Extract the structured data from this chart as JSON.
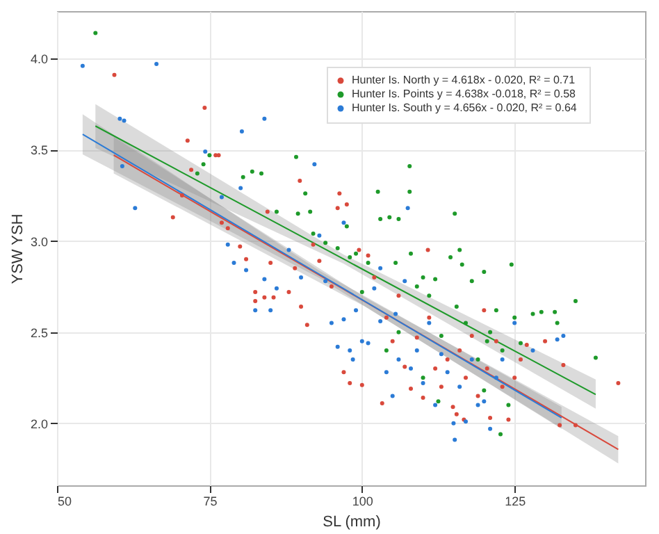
{
  "chart_data": {
    "type": "scatter",
    "xlabel": "SL (mm)",
    "ylabel": "YSW YSH",
    "xlim": [
      50,
      146.4
    ],
    "ylim": [
      1.66,
      4.26
    ],
    "xticks": [
      50,
      75,
      100,
      125
    ],
    "yticks": [
      {
        "value": 2,
        "label": "2.0"
      },
      2.5,
      {
        "value": 3,
        "label": "3.0"
      },
      3.5,
      {
        "value": 4,
        "label": "4.0"
      }
    ],
    "grid": true,
    "legend": "top right",
    "marker": "circle",
    "series": [
      {
        "name": "Hunter Is. North y = 4.618x - 0.020, R² = 0.71",
        "color": "#d9493c",
        "x": [
          59.4,
          71.4,
          74.2,
          70.5,
          69,
          72,
          76,
          76.5,
          78,
          77,
          80,
          81,
          82.5,
          82.5,
          84,
          85.5,
          85,
          88,
          89,
          90,
          91,
          92,
          93,
          95,
          96,
          97,
          98,
          100,
          99.5,
          101,
          102,
          103.3,
          104,
          105,
          106,
          107,
          108,
          109,
          110,
          110.8,
          111,
          112,
          113,
          114,
          114.9,
          115.5,
          116,
          116.7,
          117,
          118,
          119,
          120,
          120.5,
          121,
          122,
          123,
          124,
          125,
          126,
          127,
          130,
          132.4,
          133,
          135,
          142,
          89.8,
          96.3,
          97.5,
          84.5
        ],
        "values": [
          3.91,
          3.55,
          3.73,
          3.25,
          3.13,
          3.39,
          3.47,
          3.47,
          3.07,
          3.1,
          2.97,
          2.9,
          2.72,
          2.67,
          2.69,
          2.69,
          2.88,
          2.72,
          2.85,
          2.64,
          2.54,
          2.98,
          2.89,
          2.75,
          3.18,
          2.28,
          2.22,
          2.21,
          2.95,
          2.92,
          2.8,
          2.11,
          2.58,
          2.45,
          2.7,
          2.31,
          2.19,
          2.47,
          2.14,
          2.95,
          2.58,
          2.3,
          2.2,
          2.35,
          2.09,
          2.05,
          2.4,
          2.02,
          2.25,
          2.48,
          2.15,
          2.62,
          2.3,
          2.03,
          2.45,
          2.2,
          2.02,
          2.25,
          2.35,
          2.43,
          2.45,
          1.99,
          2.32,
          1.99,
          2.22,
          3.33,
          3.26,
          3.2,
          3.16
        ]
      },
      {
        "name": "Hunter Is. Points y = 4.638x  -0.018, R² = 0.58",
        "color": "#1e9a2a",
        "x": [
          56.3,
          73,
          74,
          75,
          80.5,
          82,
          83.5,
          86,
          89.2,
          89.5,
          90.7,
          91.5,
          92,
          94,
          96,
          97.5,
          98,
          99,
          100,
          101,
          102.6,
          103,
          104.5,
          105.5,
          106,
          107.8,
          107.8,
          108,
          109,
          110,
          111,
          112,
          112.5,
          113,
          114.5,
          115.2,
          115.5,
          116,
          116.4,
          117,
          118,
          119,
          120,
          120.5,
          121,
          122,
          122.7,
          123,
          124.5,
          125,
          126,
          128,
          129.4,
          131.6,
          132,
          135,
          138.3,
          120,
          124,
          104,
          106,
          110
        ],
        "values": [
          4.14,
          3.37,
          3.42,
          3.47,
          3.35,
          3.38,
          3.37,
          3.16,
          3.46,
          3.15,
          3.26,
          3.16,
          3.04,
          2.99,
          2.96,
          3.08,
          2.91,
          2.93,
          2.72,
          2.88,
          3.27,
          3.12,
          3.13,
          2.88,
          3.12,
          3.41,
          3.27,
          2.93,
          2.75,
          2.8,
          2.7,
          2.79,
          2.12,
          2.48,
          2.91,
          3.15,
          2.64,
          2.95,
          2.87,
          2.55,
          2.78,
          2.35,
          2.83,
          2.45,
          2.5,
          2.62,
          1.94,
          2.4,
          2.87,
          2.58,
          2.44,
          2.6,
          2.61,
          2.61,
          2.55,
          2.67,
          2.36,
          2.18,
          2.1,
          2.4,
          2.5,
          2.25
        ]
      },
      {
        "name": "Hunter Is. South y = 4.656x -  0.020, R² = 0.64",
        "color": "#2b7bd6",
        "x": [
          54.2,
          60.3,
          61,
          60.7,
          62.8,
          66.3,
          74.3,
          77,
          80.3,
          80.1,
          78,
          79,
          81,
          82.5,
          84,
          84,
          85,
          86,
          88,
          90,
          92.2,
          93,
          94,
          95,
          96,
          97,
          98,
          98.5,
          99,
          100,
          101,
          102,
          103,
          104,
          105,
          105.5,
          106,
          107,
          107.5,
          108,
          109,
          110,
          111,
          112,
          113,
          114,
          115,
          115.2,
          116,
          117,
          118,
          119,
          120,
          121,
          122,
          123,
          125,
          128,
          132,
          133,
          97,
          103
        ],
        "values": [
          3.96,
          3.67,
          3.66,
          3.41,
          3.18,
          3.97,
          3.49,
          3.24,
          3.6,
          3.29,
          2.98,
          2.88,
          2.84,
          2.62,
          3.67,
          2.79,
          2.62,
          2.74,
          2.95,
          2.8,
          3.42,
          3.03,
          2.78,
          2.55,
          2.42,
          2.57,
          2.4,
          2.35,
          2.62,
          2.45,
          2.44,
          2.74,
          2.85,
          2.28,
          2.15,
          2.6,
          2.35,
          2.78,
          3.18,
          2.3,
          2.4,
          2.22,
          2.55,
          2.1,
          2.38,
          2.28,
          2,
          1.91,
          2.2,
          2.01,
          2.35,
          2.1,
          2.12,
          1.97,
          2.25,
          2.35,
          2.55,
          2.4,
          2.46,
          2.48,
          3.1,
          2.56
        ]
      },
      {
        "type": "line",
        "marker": "none",
        "color": "#d9493c",
        "x": [
          59.3,
          100.5,
          142
        ],
        "values": [
          3.47,
          2.667,
          1.857
        ],
        "lower": [
          3.37,
          2.64,
          1.78
        ],
        "upper": [
          3.57,
          2.69,
          1.93
        ]
      },
      {
        "type": "line",
        "marker": "none",
        "color": "#1e9a2a",
        "x": [
          56.3,
          97,
          138.3
        ],
        "values": [
          3.63,
          2.9,
          2.158
        ],
        "lower": [
          3.51,
          2.875,
          2.08
        ],
        "upper": [
          3.75,
          2.925,
          2.24
        ]
      },
      {
        "type": "line",
        "marker": "none",
        "color": "#2b7bd6",
        "x": [
          54.2,
          93,
          132.7
        ],
        "values": [
          3.585,
          2.817,
          2.03
        ],
        "lower": [
          3.475,
          2.797,
          1.97
        ],
        "upper": [
          3.695,
          2.837,
          2.09
        ]
      }
    ]
  }
}
